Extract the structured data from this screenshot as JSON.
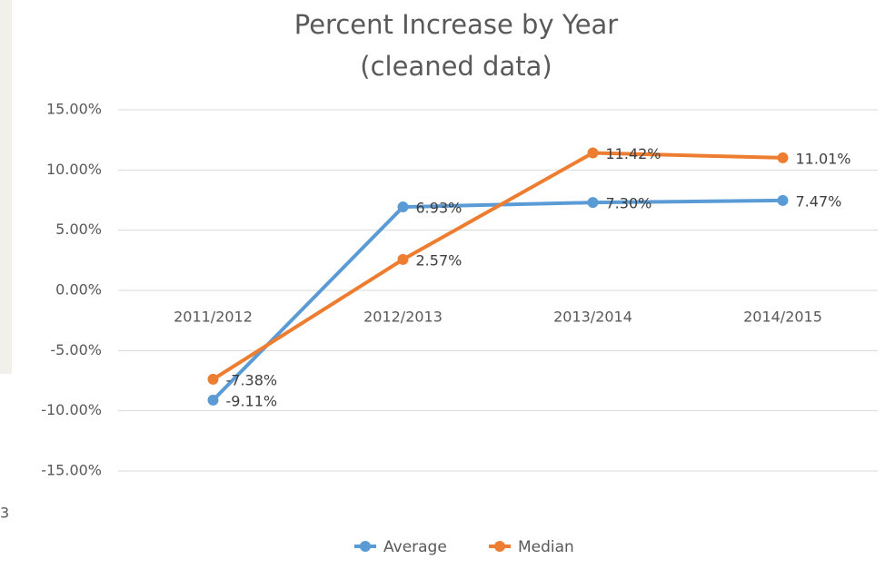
{
  "side_text": "3",
  "chart_data": {
    "type": "line",
    "title": [
      "Percent Increase by Year",
      "(cleaned data)"
    ],
    "categories": [
      "2011/2012",
      "2012/2013",
      "2013/2014",
      "2014/2015"
    ],
    "series": [
      {
        "name": "Average",
        "color": "#5b9bd5",
        "values": [
          -9.11,
          6.93,
          7.3,
          7.47
        ],
        "value_labels": [
          "-9.11%",
          "6.93%",
          "7.30%",
          "7.47%"
        ]
      },
      {
        "name": "Median",
        "color": "#ed7d31",
        "values": [
          -7.38,
          2.57,
          11.42,
          11.01
        ],
        "value_labels": [
          "-7.38%",
          "2.57%",
          "11.42%",
          "11.01%"
        ]
      }
    ],
    "ylim": [
      -15,
      15
    ],
    "yticks": [
      {
        "value": 15,
        "label": "15.00%"
      },
      {
        "value": 10,
        "label": "10.00%"
      },
      {
        "value": 5,
        "label": "5.00%"
      },
      {
        "value": 0,
        "label": "0.00%"
      },
      {
        "value": -5,
        "label": "-5.00%"
      },
      {
        "value": -10,
        "label": "-10.00%"
      },
      {
        "value": -15,
        "label": "-15.00%"
      }
    ],
    "grid": true,
    "legend": "bottom"
  }
}
